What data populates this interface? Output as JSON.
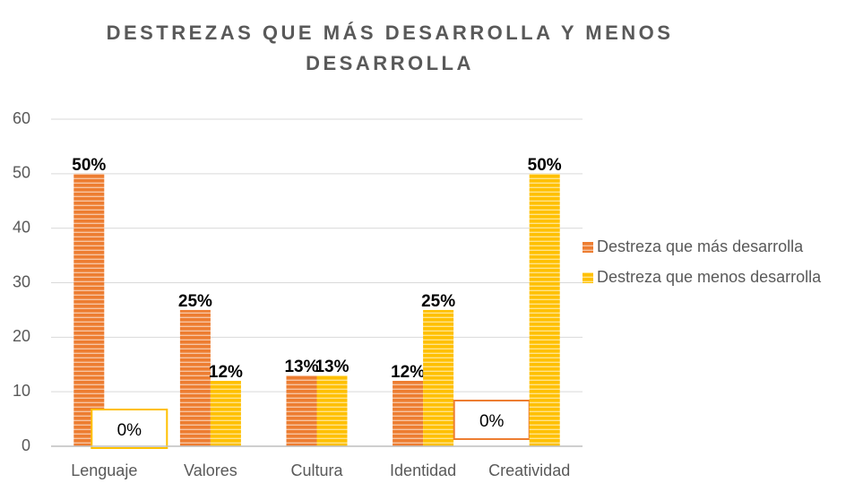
{
  "chart_data": {
    "type": "bar",
    "title": "DESTREZAS QUE MÁS DESARROLLA Y MENOS DESARROLLA",
    "categories": [
      "Lenguaje",
      "Valores",
      "Cultura",
      "Identidad",
      "Creatividad"
    ],
    "series": [
      {
        "name": "Destreza que más desarrolla",
        "color": "#ED7D31",
        "values": [
          50,
          25,
          13,
          12,
          0
        ],
        "value_labels": [
          "50%",
          "25%",
          "13%",
          "12%",
          "0%"
        ]
      },
      {
        "name": "Destreza que menos desarrolla",
        "color": "#FFC000",
        "values": [
          0,
          12,
          13,
          25,
          50
        ],
        "value_labels": [
          "0%",
          "12%",
          "13%",
          "25%",
          "50%"
        ]
      }
    ],
    "ylim": [
      0,
      60
    ],
    "yticks": [
      0,
      10,
      20,
      30,
      40,
      50,
      60
    ],
    "grid": true,
    "legend": "right"
  }
}
